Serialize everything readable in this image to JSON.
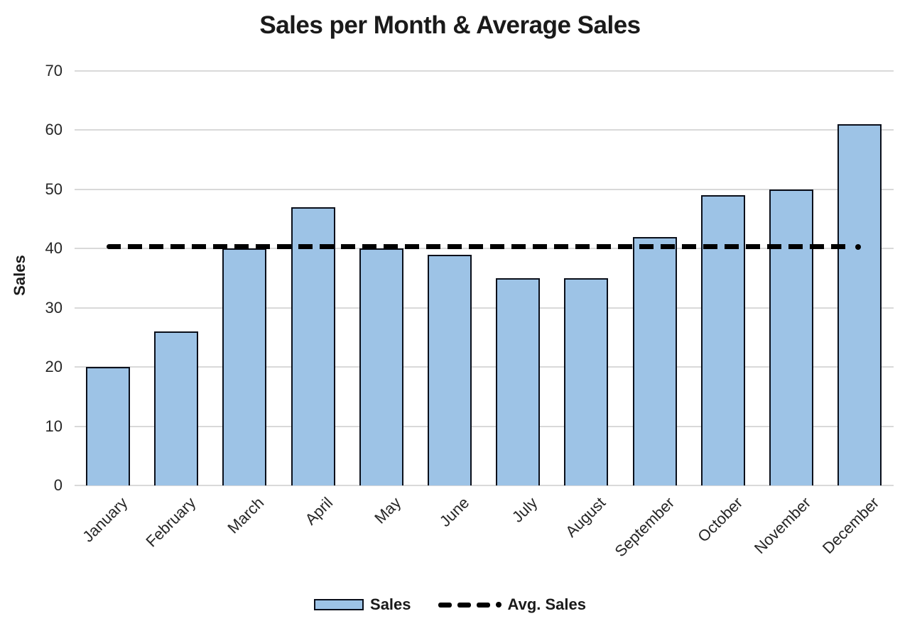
{
  "title": "Sales per Month & Average Sales",
  "legend": {
    "sales_label": "Sales",
    "avg_label": "Avg. Sales"
  },
  "chart_data": {
    "type": "bar",
    "title": "Sales per Month & Average Sales",
    "categories": [
      "January",
      "February",
      "March",
      "April",
      "May",
      "June",
      "July",
      "August",
      "September",
      "October",
      "November",
      "December"
    ],
    "series": [
      {
        "name": "Sales",
        "type": "bar",
        "values": [
          20,
          26,
          40,
          47,
          40,
          39,
          35,
          35,
          42,
          49,
          50,
          61
        ]
      },
      {
        "name": "Avg. Sales",
        "type": "dashed-line",
        "value": 40.33
      }
    ],
    "xlabel": "",
    "ylabel": "Sales",
    "ylim": [
      0,
      70
    ],
    "yticks": [
      0,
      10,
      20,
      30,
      40,
      50,
      60,
      70
    ],
    "grid": true,
    "legend_position": "bottom",
    "colors": {
      "bar_fill": "#9DC3E6",
      "bar_border": "#0A0F1A",
      "avg_line": "#000000",
      "gridline": "#D9D9D9",
      "tick_text": "#262626",
      "title_text": "#1A1A1A",
      "background": "#FFFFFF"
    }
  }
}
